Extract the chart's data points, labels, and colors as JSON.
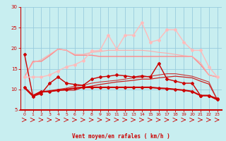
{
  "x": [
    0,
    1,
    2,
    3,
    4,
    5,
    6,
    7,
    8,
    9,
    10,
    11,
    12,
    13,
    14,
    15,
    16,
    17,
    18,
    19,
    20,
    21,
    22,
    23
  ],
  "lines": [
    {
      "y": [
        10.5,
        8.5,
        9.5,
        9.5,
        9.8,
        10.0,
        10.3,
        10.5,
        10.5,
        10.5,
        10.5,
        10.5,
        10.5,
        10.5,
        10.5,
        10.5,
        10.3,
        10.2,
        10.0,
        9.8,
        9.5,
        8.5,
        8.5,
        7.5
      ],
      "color": "#cc0000",
      "lw": 1.5,
      "marker": "D",
      "ms": 2.0
    },
    {
      "y": [
        18.5,
        8.3,
        9.0,
        11.5,
        13.0,
        11.5,
        11.2,
        11.0,
        12.5,
        13.0,
        13.2,
        13.5,
        13.3,
        13.0,
        13.3,
        13.0,
        16.3,
        12.5,
        12.0,
        11.5,
        11.5,
        8.5,
        8.5,
        7.8
      ],
      "color": "#cc0000",
      "lw": 1.0,
      "marker": "D",
      "ms": 2.0
    },
    {
      "y": [
        10.3,
        8.3,
        9.3,
        9.5,
        9.8,
        9.8,
        9.8,
        10.5,
        10.8,
        11.2,
        11.5,
        11.8,
        12.0,
        12.2,
        12.5,
        12.5,
        12.8,
        13.0,
        13.2,
        13.0,
        12.8,
        12.0,
        11.3,
        7.5
      ],
      "color": "#cc2222",
      "lw": 0.9,
      "marker": null
    },
    {
      "y": [
        10.3,
        8.3,
        9.3,
        9.7,
        10.0,
        10.3,
        10.8,
        11.0,
        11.5,
        11.8,
        12.0,
        12.2,
        12.5,
        12.8,
        13.0,
        13.2,
        13.5,
        13.8,
        13.8,
        13.5,
        13.2,
        12.5,
        11.8,
        7.5
      ],
      "color": "#cc3333",
      "lw": 0.8,
      "marker": null
    },
    {
      "y": [
        13.0,
        16.8,
        16.8,
        18.2,
        19.8,
        19.5,
        18.3,
        18.3,
        18.3,
        18.0,
        18.0,
        18.0,
        18.0,
        18.0,
        18.0,
        18.0,
        18.0,
        18.0,
        18.0,
        18.0,
        18.0,
        16.0,
        13.5,
        13.0
      ],
      "color": "#ff8888",
      "lw": 1.0,
      "marker": null
    },
    {
      "y": [
        13.0,
        16.5,
        17.2,
        18.5,
        19.8,
        19.5,
        18.5,
        18.5,
        19.0,
        19.2,
        19.5,
        19.5,
        19.5,
        19.5,
        19.5,
        19.3,
        19.0,
        18.8,
        18.5,
        18.2,
        18.0,
        16.5,
        13.5,
        13.0
      ],
      "color": "#ffaaaa",
      "lw": 0.8,
      "marker": null
    },
    {
      "y": [
        13.0,
        13.0,
        13.0,
        13.5,
        14.5,
        15.5,
        16.0,
        17.0,
        19.3,
        19.5,
        23.2,
        19.8,
        23.2,
        23.2,
        26.2,
        21.5,
        22.0,
        24.5,
        24.5,
        21.5,
        19.5,
        19.5,
        15.5,
        13.0
      ],
      "color": "#ffbbbb",
      "lw": 1.0,
      "marker": "D",
      "ms": 2.0
    }
  ],
  "xlabel": "Vent moyen/en rafales ( km/h )",
  "xlim": [
    -0.5,
    23.5
  ],
  "ylim": [
    5,
    30
  ],
  "yticks": [
    5,
    10,
    15,
    20,
    25,
    30
  ],
  "xticks": [
    0,
    1,
    2,
    3,
    4,
    5,
    6,
    7,
    8,
    9,
    10,
    11,
    12,
    13,
    14,
    15,
    16,
    17,
    18,
    19,
    20,
    21,
    22,
    23
  ],
  "bg_color": "#c8eef0",
  "grid_color": "#99ccdd",
  "axis_color": "#cc0000",
  "label_color": "#cc0000"
}
